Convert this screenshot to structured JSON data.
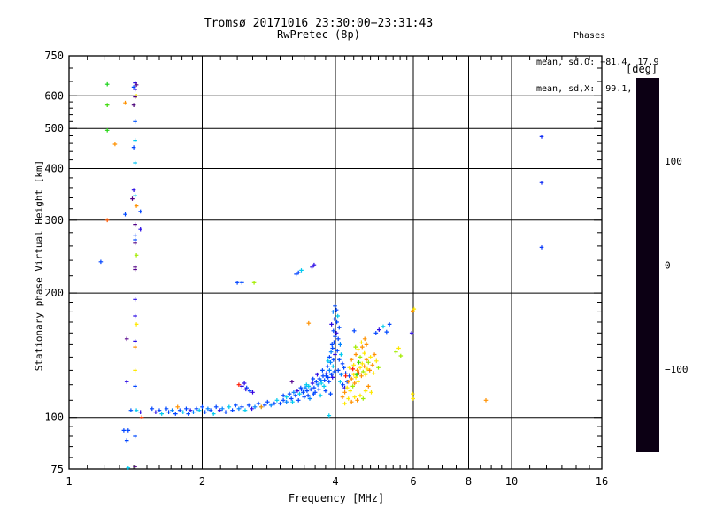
{
  "figure": {
    "title": "Tromsø 20171016 23:30:00−23:31:43",
    "subtitle": "RwPretec (8p)",
    "stats": {
      "heading": "Phases",
      "line_o": "mean, sd,O: −81.4, 17.9",
      "line_x": "mean, sd,X:  99.1, 19.7"
    }
  },
  "chart_data": {
    "type": "scatter",
    "title": "Tromsø 20171016 23:30:00−23:31:43",
    "subtitle": "RwPretec (8p)",
    "xlabel": "Frequency [MHz]",
    "ylabel": "Stationary phase Virtual Height [km]",
    "xscale": "log",
    "yscale": "log",
    "xlim": [
      1,
      16
    ],
    "ylim": [
      75,
      750
    ],
    "grid": true,
    "x_major_ticks": [
      {
        "v": 1,
        "label": "1"
      },
      {
        "v": 2,
        "label": "2"
      },
      {
        "v": 4,
        "label": "4"
      },
      {
        "v": 6,
        "label": "6"
      },
      {
        "v": 8,
        "label": "8"
      },
      {
        "v": 10,
        "label": "10"
      },
      {
        "v": 16,
        "label": "16"
      }
    ],
    "x_minor_ticks": [
      1.1,
      1.2,
      1.3,
      1.4,
      1.5,
      1.6,
      1.7,
      1.8,
      1.9,
      2.2,
      2.4,
      2.6,
      2.8,
      3.0,
      3.2,
      3.4,
      3.6,
      3.8,
      4.2,
      4.4,
      4.6,
      4.8,
      5.0,
      5.2,
      5.4,
      5.6,
      5.8,
      6.5,
      7.0,
      7.5,
      8.5,
      9.0,
      9.5,
      11,
      12,
      13,
      14,
      15
    ],
    "y_major_ticks": [
      {
        "v": 75,
        "label": "75"
      },
      {
        "v": 100,
        "label": "100"
      },
      {
        "v": 200,
        "label": "200"
      },
      {
        "v": 300,
        "label": "300"
      },
      {
        "v": 400,
        "label": "400"
      },
      {
        "v": 500,
        "label": "500"
      },
      {
        "v": 600,
        "label": "600"
      },
      {
        "v": 750,
        "label": "750"
      }
    ],
    "y_minor_ticks": [
      80,
      85,
      90,
      95,
      110,
      120,
      130,
      140,
      150,
      160,
      170,
      180,
      190,
      220,
      240,
      260,
      280,
      320,
      340,
      360,
      380,
      420,
      440,
      460,
      480,
      520,
      540,
      560,
      580,
      650,
      700
    ],
    "x_gridlines": [
      2,
      4,
      6,
      8,
      10
    ],
    "y_gridlines": [
      100,
      200,
      300,
      400,
      500,
      600
    ],
    "colorbar": {
      "label": "[deg]",
      "range": [
        -180,
        180
      ],
      "ticks": [
        {
          "v": 100,
          "label": "100"
        },
        {
          "v": 0,
          "label": "0"
        },
        {
          "v": -100,
          "label": "−100"
        }
      ],
      "stops": [
        [
          -180,
          "#0c0014"
        ],
        [
          -150,
          "#55008c"
        ],
        [
          -120,
          "#3300e0"
        ],
        [
          -90,
          "#0044ff"
        ],
        [
          -60,
          "#00a0ff"
        ],
        [
          -40,
          "#00d8e8"
        ],
        [
          -15,
          "#00e0a0"
        ],
        [
          0,
          "#00cc22"
        ],
        [
          30,
          "#44dd00"
        ],
        [
          70,
          "#b0ee00"
        ],
        [
          100,
          "#ffe800"
        ],
        [
          130,
          "#ff9100"
        ],
        [
          158,
          "#ff4000"
        ],
        [
          180,
          "#ff0000"
        ]
      ]
    },
    "point_format": [
      "frequency_MHz",
      "virtual_height_km",
      "phase_deg"
    ],
    "points": [
      [
        1.41,
        645,
        -115
      ],
      [
        1.42,
        638,
        -152
      ],
      [
        1.4,
        630,
        -90
      ],
      [
        1.41,
        622,
        -115
      ],
      [
        1.42,
        600,
        100
      ],
      [
        1.41,
        596,
        -152
      ],
      [
        1.34,
        577,
        130
      ],
      [
        1.4,
        570,
        -155
      ],
      [
        1.41,
        520,
        -85
      ],
      [
        1.41,
        468,
        -45
      ],
      [
        1.27,
        458,
        130
      ],
      [
        1.4,
        450,
        -90
      ],
      [
        1.41,
        413,
        -48
      ],
      [
        1.4,
        355,
        -115
      ],
      [
        1.41,
        344,
        -45
      ],
      [
        1.39,
        338,
        -152
      ],
      [
        1.42,
        325,
        130
      ],
      [
        1.45,
        315,
        -90
      ],
      [
        1.34,
        310,
        -88
      ],
      [
        1.41,
        293,
        -152
      ],
      [
        1.45,
        285,
        -115
      ],
      [
        1.41,
        276,
        -90
      ],
      [
        1.41,
        269,
        -88
      ],
      [
        1.41,
        264,
        -152
      ],
      [
        1.42,
        247,
        65
      ],
      [
        1.18,
        238,
        -90
      ],
      [
        1.41,
        231,
        -152
      ],
      [
        1.41,
        228,
        -150
      ],
      [
        1.41,
        193,
        -115
      ],
      [
        1.41,
        176,
        -115
      ],
      [
        1.42,
        168,
        100
      ],
      [
        1.35,
        155,
        -150
      ],
      [
        1.41,
        153,
        -115
      ],
      [
        1.41,
        148,
        130
      ],
      [
        1.41,
        130,
        100
      ],
      [
        1.35,
        122,
        -115
      ],
      [
        1.41,
        119,
        -90
      ],
      [
        1.38,
        104,
        -85
      ],
      [
        1.42,
        104,
        -45
      ],
      [
        1.45,
        103,
        -115
      ],
      [
        1.36,
        93,
        -90
      ],
      [
        1.41,
        90,
        -88
      ],
      [
        1.36,
        75.5,
        -45
      ],
      [
        1.41,
        76,
        -152
      ],
      [
        1.22,
        640,
        10
      ],
      [
        1.22,
        570,
        25
      ],
      [
        1.22,
        495,
        15
      ],
      [
        1.22,
        300,
        150
      ],
      [
        1.46,
        100,
        160
      ],
      [
        1.35,
        88,
        -90
      ],
      [
        1.33,
        93,
        -90
      ],
      [
        1.54,
        105,
        -90
      ],
      [
        1.57,
        103,
        -115
      ],
      [
        1.6,
        104,
        -90
      ],
      [
        1.62,
        102,
        -45
      ],
      [
        1.66,
        105,
        -88
      ],
      [
        1.68,
        103,
        -90
      ],
      [
        1.71,
        104,
        -70
      ],
      [
        1.74,
        102,
        -90
      ],
      [
        1.76,
        106,
        130
      ],
      [
        1.78,
        104,
        -90
      ],
      [
        1.81,
        103,
        -45
      ],
      [
        1.84,
        105,
        -90
      ],
      [
        1.86,
        102,
        -88
      ],
      [
        1.88,
        104,
        -115
      ],
      [
        1.91,
        103,
        -70
      ],
      [
        1.94,
        105,
        -90
      ],
      [
        1.97,
        104,
        -45
      ],
      [
        2.0,
        106,
        -90
      ],
      [
        2.03,
        103,
        -88
      ],
      [
        2.06,
        105,
        -70
      ],
      [
        2.09,
        104,
        -90
      ],
      [
        2.12,
        102,
        -45
      ],
      [
        2.15,
        106,
        -90
      ],
      [
        2.19,
        104,
        -115
      ],
      [
        2.22,
        105,
        -70
      ],
      [
        2.26,
        103,
        -90
      ],
      [
        2.3,
        106,
        -45
      ],
      [
        2.34,
        104,
        -90
      ],
      [
        2.38,
        107,
        -88
      ],
      [
        2.42,
        105,
        -70
      ],
      [
        2.46,
        106,
        -90
      ],
      [
        2.5,
        104,
        -45
      ],
      [
        2.55,
        107,
        -90
      ],
      [
        2.59,
        105,
        -115
      ],
      [
        2.63,
        106,
        -70
      ],
      [
        2.68,
        108,
        -90
      ],
      [
        2.72,
        106,
        -45
      ],
      [
        2.77,
        107,
        -90
      ],
      [
        2.81,
        109,
        -88
      ],
      [
        2.86,
        107,
        -70
      ],
      [
        2.91,
        108,
        -90
      ],
      [
        2.95,
        110,
        -45
      ],
      [
        3.0,
        108,
        -90
      ],
      [
        3.05,
        110,
        -88
      ],
      [
        3.1,
        109,
        -70
      ],
      [
        3.05,
        113,
        -90
      ],
      [
        3.1,
        112,
        -45
      ],
      [
        3.15,
        114,
        -88
      ],
      [
        3.18,
        111,
        -90
      ],
      [
        3.22,
        115,
        -70
      ],
      [
        3.25,
        113,
        -90
      ],
      [
        3.28,
        116,
        -115
      ],
      [
        3.32,
        114,
        -45
      ],
      [
        3.35,
        117,
        -90
      ],
      [
        3.38,
        115,
        -88
      ],
      [
        3.42,
        118,
        -70
      ],
      [
        3.45,
        116,
        -90
      ],
      [
        3.48,
        119,
        -45
      ],
      [
        3.52,
        117,
        -90
      ],
      [
        3.55,
        121,
        -115
      ],
      [
        3.58,
        118,
        -88
      ],
      [
        3.62,
        122,
        -90
      ],
      [
        3.65,
        120,
        -70
      ],
      [
        3.68,
        124,
        -90
      ],
      [
        3.72,
        121,
        -45
      ],
      [
        3.75,
        126,
        -90
      ],
      [
        3.78,
        123,
        -88
      ],
      [
        3.82,
        128,
        -115
      ],
      [
        3.85,
        125,
        -90
      ],
      [
        3.88,
        130,
        -70
      ],
      [
        3.92,
        127,
        -90
      ],
      [
        3.95,
        133,
        -45
      ],
      [
        3.98,
        129,
        -88
      ],
      [
        3.6,
        115,
        -90
      ],
      [
        3.7,
        113,
        -45
      ],
      [
        3.8,
        116,
        -90
      ],
      [
        3.9,
        114,
        -88
      ],
      [
        3.4,
        112,
        -90
      ],
      [
        3.5,
        111,
        -70
      ],
      [
        3.3,
        110,
        -90
      ],
      [
        3.2,
        109,
        -45
      ],
      [
        3.34,
        118,
        -90
      ],
      [
        3.44,
        120,
        -45
      ],
      [
        3.56,
        124,
        -90
      ],
      [
        3.64,
        127,
        -115
      ],
      [
        3.74,
        130,
        -88
      ],
      [
        3.84,
        133,
        -90
      ],
      [
        3.9,
        136,
        -70
      ],
      [
        3.47,
        113,
        -90
      ],
      [
        3.57,
        114,
        -88
      ],
      [
        3.67,
        117,
        -90
      ],
      [
        3.77,
        119,
        -45
      ],
      [
        3.87,
        122,
        -90
      ],
      [
        3.94,
        125,
        -115
      ],
      [
        3.81,
        126,
        -90
      ],
      [
        3.71,
        123,
        -70
      ],
      [
        3.96,
        138,
        -90
      ],
      [
        3.99,
        142,
        -115
      ],
      [
        3.94,
        147,
        -88
      ],
      [
        3.97,
        152,
        -90
      ],
      [
        3.91,
        144,
        -70
      ],
      [
        3.88,
        140,
        -90
      ],
      [
        3.85,
        137,
        -45
      ],
      [
        3.93,
        150,
        -90
      ],
      [
        3.99,
        157,
        -88
      ],
      [
        3.96,
        162,
        -90
      ],
      [
        3.92,
        168,
        -115
      ],
      [
        3.98,
        173,
        -90
      ],
      [
        3.95,
        180,
        -70
      ],
      [
        3.99,
        186,
        -88
      ],
      [
        4.02,
        182,
        -90
      ],
      [
        4.05,
        176,
        -45
      ],
      [
        4.03,
        170,
        -90
      ],
      [
        4.08,
        165,
        -88
      ],
      [
        4.02,
        160,
        -115
      ],
      [
        4.06,
        155,
        -90
      ],
      [
        4.1,
        150,
        -70
      ],
      [
        4.04,
        145,
        -90
      ],
      [
        4.12,
        142,
        -45
      ],
      [
        4.08,
        138,
        -88
      ],
      [
        4.15,
        135,
        -90
      ],
      [
        4.06,
        130,
        -90
      ],
      [
        4.12,
        127,
        -70
      ],
      [
        4.18,
        132,
        -88
      ],
      [
        4.22,
        128,
        -90
      ],
      [
        4.1,
        122,
        -45
      ],
      [
        4.16,
        120,
        -90
      ],
      [
        4.2,
        118,
        -115
      ],
      [
        4.25,
        122,
        -90
      ],
      [
        4.3,
        126,
        -88
      ],
      [
        4.2,
        115,
        130
      ],
      [
        4.25,
        118,
        100
      ],
      [
        4.28,
        122,
        130
      ],
      [
        4.32,
        116,
        100
      ],
      [
        4.35,
        124,
        130
      ],
      [
        4.38,
        119,
        65
      ],
      [
        4.4,
        127,
        100
      ],
      [
        4.42,
        121,
        130
      ],
      [
        4.45,
        125,
        100
      ],
      [
        4.48,
        130,
        130
      ],
      [
        4.5,
        122,
        100
      ],
      [
        4.52,
        128,
        150
      ],
      [
        4.55,
        132,
        100
      ],
      [
        4.58,
        126,
        130
      ],
      [
        4.6,
        135,
        100
      ],
      [
        4.62,
        129,
        65
      ],
      [
        4.65,
        133,
        130
      ],
      [
        4.68,
        127,
        100
      ],
      [
        4.7,
        138,
        130
      ],
      [
        4.72,
        131,
        100
      ],
      [
        4.75,
        136,
        65
      ],
      [
        4.78,
        130,
        130
      ],
      [
        4.8,
        140,
        100
      ],
      [
        4.85,
        134,
        130
      ],
      [
        4.88,
        128,
        100
      ],
      [
        4.9,
        142,
        130
      ],
      [
        4.95,
        137,
        100
      ],
      [
        5.0,
        132,
        65
      ],
      [
        4.3,
        132,
        100
      ],
      [
        4.35,
        138,
        130
      ],
      [
        4.4,
        134,
        100
      ],
      [
        4.45,
        142,
        130
      ],
      [
        4.5,
        146,
        100
      ],
      [
        4.55,
        140,
        65
      ],
      [
        4.6,
        148,
        130
      ],
      [
        4.65,
        143,
        100
      ],
      [
        4.7,
        150,
        130
      ],
      [
        4.42,
        112,
        100
      ],
      [
        4.48,
        110,
        130
      ],
      [
        4.55,
        113,
        100
      ],
      [
        4.62,
        111,
        65
      ],
      [
        4.35,
        109,
        130
      ],
      [
        4.28,
        111,
        100
      ],
      [
        4.68,
        116,
        100
      ],
      [
        4.75,
        119,
        130
      ],
      [
        4.82,
        115,
        100
      ],
      [
        4.22,
        126,
        172
      ],
      [
        4.58,
        152,
        100
      ],
      [
        4.66,
        155,
        130
      ],
      [
        4.2,
        108,
        100
      ],
      [
        4.15,
        112,
        130
      ],
      [
        4.52,
        136,
        30
      ],
      [
        4.44,
        148,
        65
      ],
      [
        4.38,
        131,
        172
      ],
      [
        4.47,
        127,
        10
      ],
      [
        2.4,
        212,
        -90
      ],
      [
        2.46,
        212,
        -88
      ],
      [
        2.62,
        212,
        65
      ],
      [
        3.26,
        222,
        -90
      ],
      [
        3.3,
        224,
        -90
      ],
      [
        3.35,
        227,
        -45
      ],
      [
        3.54,
        231,
        -115
      ],
      [
        3.58,
        234,
        -115
      ],
      [
        2.42,
        120,
        172
      ],
      [
        2.46,
        119,
        -115
      ],
      [
        2.49,
        121,
        -115
      ],
      [
        2.52,
        118,
        -90
      ],
      [
        2.51,
        117,
        -115
      ],
      [
        2.56,
        116,
        -90
      ],
      [
        2.6,
        115,
        -120
      ],
      [
        3.19,
        122,
        -150
      ],
      [
        3.48,
        169,
        130
      ],
      [
        2.72,
        106,
        130
      ],
      [
        3.87,
        101,
        -45
      ],
      [
        4.41,
        162,
        -90
      ],
      [
        4.94,
        160,
        -90
      ],
      [
        5.02,
        163,
        -115
      ],
      [
        5.13,
        166,
        -45
      ],
      [
        5.22,
        161,
        -88
      ],
      [
        5.3,
        168,
        -90
      ],
      [
        5.48,
        144,
        65
      ],
      [
        5.56,
        147,
        100
      ],
      [
        5.62,
        141,
        65
      ],
      [
        5.98,
        181,
        130
      ],
      [
        6.02,
        183,
        100
      ],
      [
        5.95,
        160,
        -115
      ],
      [
        5.98,
        114,
        100
      ],
      [
        5.99,
        111,
        100
      ],
      [
        8.75,
        110,
        130
      ],
      [
        11.7,
        478,
        -100
      ],
      [
        11.7,
        370,
        -100
      ],
      [
        11.7,
        258,
        -95
      ]
    ]
  }
}
